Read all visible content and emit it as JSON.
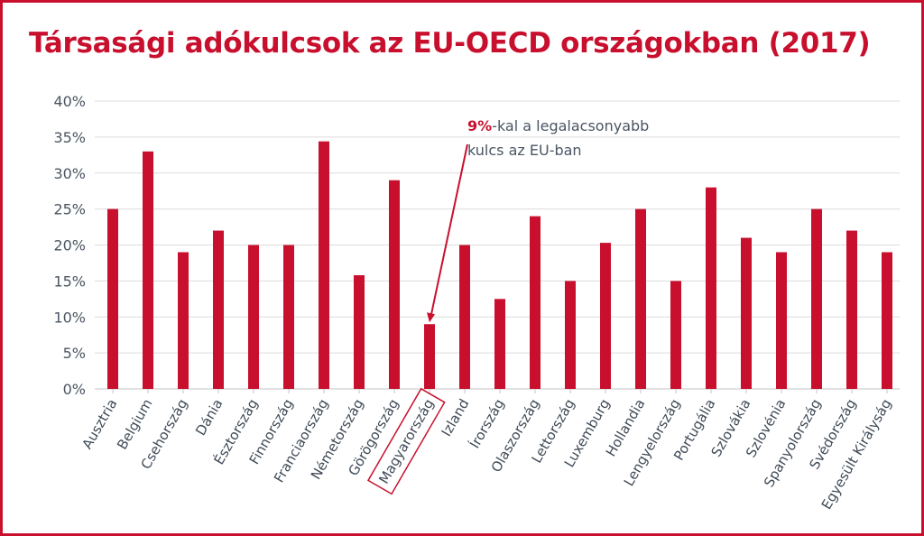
{
  "title": "Társasági adókulcsok az EU-OECD országokban (2017)",
  "colors": {
    "accent": "#c8102e",
    "grid": "#dcdcdc",
    "text": "#4a5563"
  },
  "annotation": {
    "highlight": "9%",
    "line1_rest": "-kal a legalacsonyabb",
    "line2": "kulcs az EU-ban",
    "target_category": "Magyarország"
  },
  "chart_data": {
    "type": "bar",
    "title": "Társasági adókulcsok az EU-OECD országokban (2017)",
    "xlabel": "",
    "ylabel": "",
    "ylim": [
      0,
      40
    ],
    "yticks": [
      "0%",
      "5%",
      "10%",
      "15%",
      "20%",
      "25%",
      "30%",
      "35%",
      "40%"
    ],
    "grid": true,
    "legend": "none",
    "highlighted_category": "Magyarország",
    "categories": [
      "Ausztria",
      "Belgium",
      "Csehország",
      "Dánia",
      "Észtország",
      "Finnország",
      "Franciaország",
      "Németország",
      "Görögország",
      "Magyarország",
      "Izland",
      "Írország",
      "Olaszország",
      "Lettország",
      "Luxemburg",
      "Hollandia",
      "Lengyelország",
      "Portugália",
      "Szlovákia",
      "Szlovénia",
      "Spanyolország",
      "Svédország",
      "Egyesült Királyság"
    ],
    "values": [
      25,
      33,
      19,
      22,
      20,
      20,
      34.4,
      15.8,
      29,
      9,
      20,
      12.5,
      24,
      15,
      20.3,
      25,
      15,
      28,
      21,
      19,
      25,
      22,
      19
    ]
  }
}
